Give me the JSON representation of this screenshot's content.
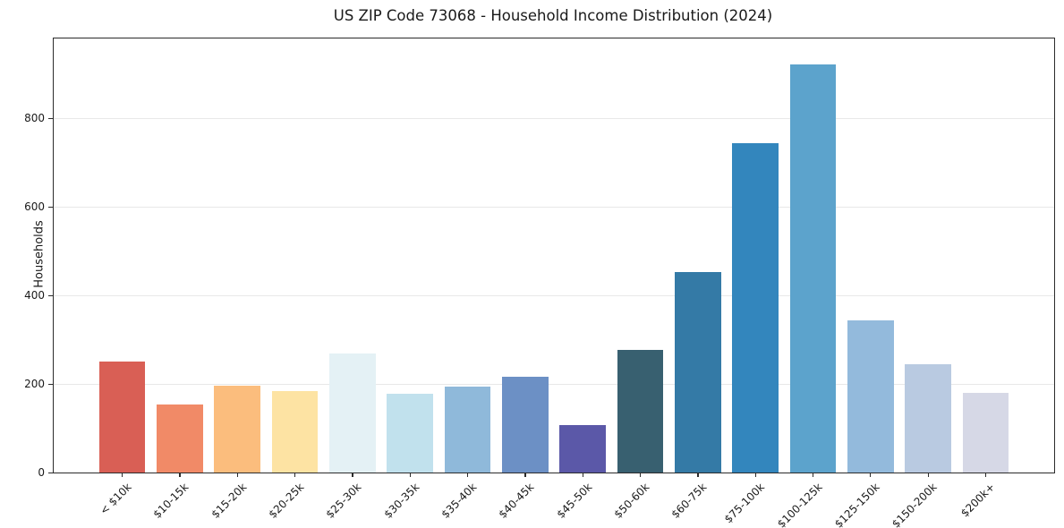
{
  "page": {
    "title": "US ZIP Code 73068 - Household Income Distribution (2024)"
  },
  "chart_data": {
    "type": "bar",
    "title": "US ZIP Code 73068 - Household Income Distribution (2024)",
    "xlabel": "",
    "ylabel": "Households",
    "categories": [
      "< $10k",
      "$10-15k",
      "$15-20k",
      "$20-25k",
      "$25-30k",
      "$30-35k",
      "$35-40k",
      "$40-45k",
      "$45-50k",
      "$50-60k",
      "$60-75k",
      "$75-100k",
      "$100-125k",
      "$125-150k",
      "$150-200k",
      "$200k+"
    ],
    "values": [
      250,
      153,
      196,
      185,
      270,
      179,
      195,
      216,
      108,
      278,
      453,
      745,
      923,
      343,
      245,
      181
    ],
    "bar_colors": [
      "#d95f55",
      "#f18a67",
      "#fbbd7d",
      "#fde3a3",
      "#e4f1f5",
      "#c1e1ed",
      "#8fb9da",
      "#6c90c5",
      "#5b58a8",
      "#386070",
      "#347aa6",
      "#3386bd",
      "#5ca3cc",
      "#93badc",
      "#b9cae1",
      "#d6d8e6"
    ],
    "yticks": [
      0,
      200,
      400,
      600,
      800
    ],
    "ylim": [
      0,
      981
    ],
    "grid": "horizontal",
    "legend": "none",
    "tick_label_rotation": 45
  },
  "style": {
    "grid_color": "#e8e8e8",
    "spine_color": "#2b2b2b",
    "text_color": "#1a1a1a",
    "background": "#ffffff"
  }
}
